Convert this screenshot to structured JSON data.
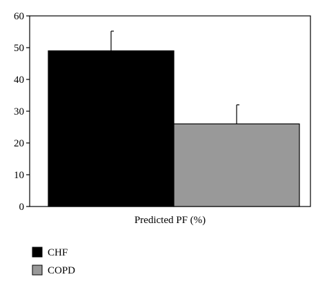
{
  "chart_data": {
    "type": "bar",
    "title": "",
    "xlabel": "Predicted PF (%)",
    "ylabel": "",
    "ylim": [
      0,
      60
    ],
    "yticks": [
      0,
      10,
      20,
      30,
      40,
      50,
      60
    ],
    "grid": false,
    "legend_position": "bottom-left",
    "categories": [
      "Predicted PF (%)"
    ],
    "series": [
      {
        "name": "CHF",
        "values": [
          49
        ],
        "error": [
          6.2
        ],
        "color": "#000000"
      },
      {
        "name": "COPD",
        "values": [
          26
        ],
        "error": [
          6.0
        ],
        "color": "#999999"
      }
    ]
  }
}
